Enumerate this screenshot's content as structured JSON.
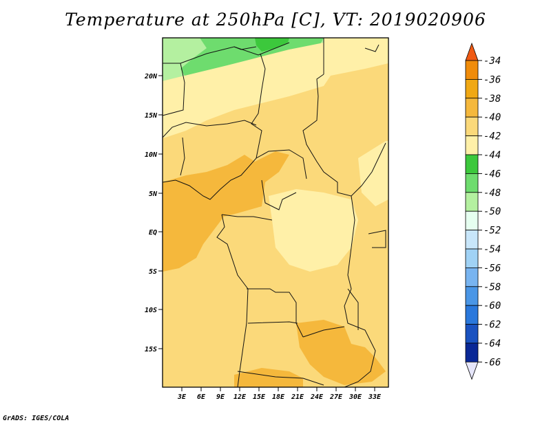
{
  "title": "Temperature at 250hPa [C], VT: 2019020906",
  "credit": "GrADS: IGES/COLA",
  "map": {
    "lat_labels": [
      "20N",
      "15N",
      "10N",
      "5N",
      "EQ",
      "5S",
      "10S",
      "15S"
    ],
    "lon_labels": [
      "3E",
      "6E",
      "9E",
      "12E",
      "15E",
      "18E",
      "21E",
      "24E",
      "27E",
      "30E",
      "33E"
    ]
  },
  "colorbar": {
    "levels": [
      "-34",
      "-36",
      "-38",
      "-40",
      "-42",
      "-44",
      "-46",
      "-48",
      "-50",
      "-52",
      "-54",
      "-56",
      "-58",
      "-60",
      "-62",
      "-64",
      "-66"
    ],
    "colors": [
      "#f05a14",
      "#f08c0a",
      "#f0a814",
      "#f5b83c",
      "#fbd97a",
      "#fff0a8",
      "#3cc83c",
      "#6edc6e",
      "#b4f0a0",
      "#e6fff0",
      "#c8e6fa",
      "#a0d2f5",
      "#78b4f0",
      "#4a96e6",
      "#2a78dc",
      "#1a52c0",
      "#0a2896",
      "#0a1464",
      "#e6e6fa"
    ]
  }
}
